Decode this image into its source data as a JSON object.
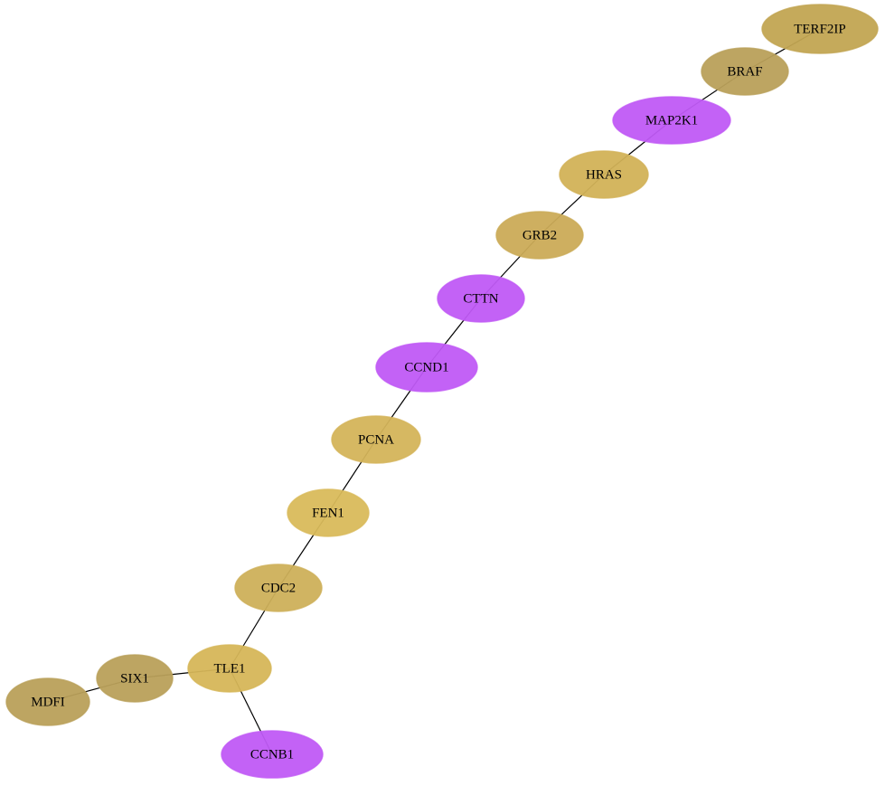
{
  "nodes": [
    {
      "label": "TERF2IP",
      "color": "#c2a552"
    },
    {
      "label": "BRAF",
      "color": "#b9a05a"
    },
    {
      "label": "MAP2K1",
      "color": "#c05af5"
    },
    {
      "label": "HRAS",
      "color": "#d2b257"
    },
    {
      "label": "GRB2",
      "color": "#cbab57"
    },
    {
      "label": "CTTN",
      "color": "#c05af5"
    },
    {
      "label": "CCND1",
      "color": "#c05af5"
    },
    {
      "label": "PCNA",
      "color": "#d4b45a"
    },
    {
      "label": "FEN1",
      "color": "#d9ba5b"
    },
    {
      "label": "CDC2",
      "color": "#ceb05a"
    },
    {
      "label": "TLE1",
      "color": "#d6b658"
    },
    {
      "label": "SIX1",
      "color": "#b9a05a"
    },
    {
      "label": "MDFI",
      "color": "#b9a05a"
    },
    {
      "label": "CCNB1",
      "color": "#c05af5"
    }
  ]
}
